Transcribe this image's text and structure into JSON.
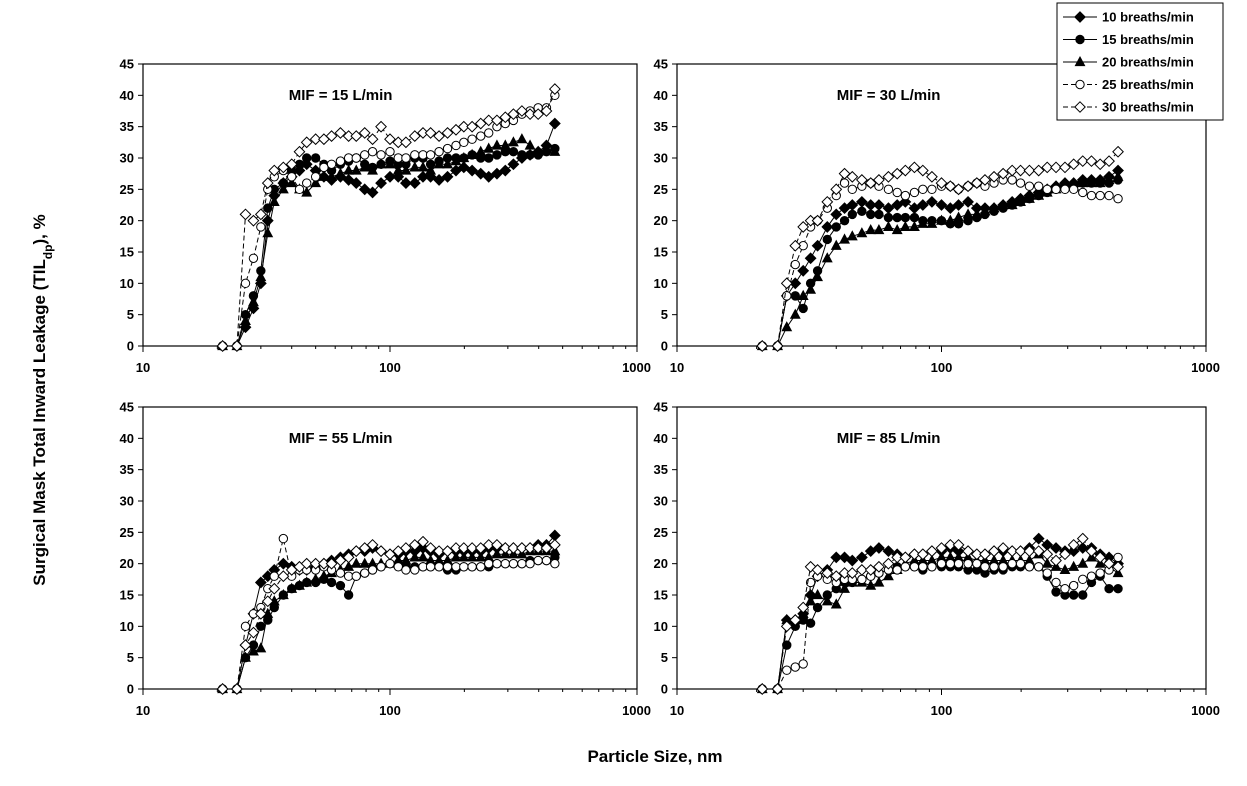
{
  "chart_data": {
    "type": "line",
    "x_scale": "log",
    "xlim": [
      10,
      1000
    ],
    "ylim": [
      0,
      45
    ],
    "x_ticks": [
      "10",
      "100",
      "1000"
    ],
    "y_ticks": [
      "0",
      "5",
      "10",
      "15",
      "20",
      "25",
      "30",
      "35",
      "40",
      "45"
    ],
    "ylabel_main": "Surgical Mask Total Inward Leakage (TIL",
    "ylabel_sub": "dp",
    "ylabel_end": "), %",
    "xlabel": "Particle Size, nm",
    "grid": false,
    "legend_placement": "top-right",
    "legend": [
      {
        "name": "10 breaths/min",
        "marker": "diamond-filled",
        "dash": "solid"
      },
      {
        "name": "15 breaths/min",
        "marker": "circle-filled",
        "dash": "solid"
      },
      {
        "name": "20 breaths/min",
        "marker": "triangle-filled",
        "dash": "solid"
      },
      {
        "name": "25 breaths/min",
        "marker": "circle-open",
        "dash": "dashed"
      },
      {
        "name": "30 breaths/min",
        "marker": "diamond-open",
        "dash": "dashed"
      }
    ],
    "x": [
      21,
      24,
      26,
      28,
      30,
      32,
      34,
      37,
      40,
      43,
      46,
      50,
      54,
      58,
      63,
      68,
      73,
      79,
      85,
      92,
      100,
      108,
      116,
      126,
      136,
      146,
      158,
      171,
      185,
      199,
      215,
      233,
      251,
      271,
      293,
      316,
      342,
      369,
      398,
      430,
      465
    ],
    "panels": [
      {
        "title": "MIF = 15 L/min",
        "series": [
          {
            "name": "10 breaths/min",
            "values": [
              0,
              0,
              3,
              6,
              10,
              20,
              24,
              26,
              27,
              28,
              29,
              28,
              27,
              26.5,
              27,
              26.5,
              26,
              25,
              24.5,
              26,
              27,
              27,
              26,
              26,
              27,
              27,
              26.5,
              27,
              28,
              28.5,
              28,
              27.5,
              27,
              27.5,
              28,
              29,
              30,
              30.5,
              31,
              32,
              35.5
            ]
          },
          {
            "name": "15 breaths/min",
            "values": [
              0,
              0,
              5,
              8,
              12,
              22,
              25,
              26,
              28,
              29,
              30,
              30,
              29,
              28,
              29,
              29.5,
              30,
              29,
              28.5,
              29,
              29.5,
              29,
              29,
              30,
              30,
              29,
              29.5,
              30,
              30,
              30,
              30.5,
              30,
              30,
              30.5,
              31,
              31,
              30.5,
              30.5,
              30.5,
              31,
              31.5
            ]
          },
          {
            "name": "20 breaths/min",
            "values": [
              0,
              0,
              4,
              7,
              11,
              18,
              23,
              25,
              26,
              25,
              24.5,
              26,
              27,
              27,
              27.5,
              28,
              28,
              28.5,
              28,
              29,
              29,
              28,
              28,
              28.5,
              28.5,
              28,
              29,
              29,
              29.5,
              30,
              30.5,
              31,
              31.5,
              32,
              32,
              32.5,
              33,
              32,
              31,
              31.5,
              31
            ]
          },
          {
            "name": "25 breaths/min",
            "values": [
              0,
              0,
              10,
              14,
              19,
              25,
              27,
              28,
              27,
              25,
              26,
              27,
              28.5,
              29,
              29.5,
              30,
              30,
              30.5,
              31,
              30.5,
              31,
              30,
              30,
              30.5,
              30.5,
              30.5,
              31,
              31.5,
              32,
              32.5,
              33,
              33.5,
              34,
              35,
              35.5,
              36,
              37,
              37.5,
              38,
              38,
              40
            ]
          },
          {
            "name": "30 breaths/min",
            "values": [
              0,
              0,
              21,
              20,
              21,
              26,
              28,
              28.5,
              29,
              31,
              32.5,
              33,
              33,
              33.5,
              34,
              33.5,
              33.5,
              34,
              33,
              35,
              33,
              32.5,
              32.5,
              33.5,
              34,
              34,
              33.5,
              34,
              34.5,
              35,
              35,
              35.5,
              36,
              36,
              36.5,
              37,
              37.5,
              37,
              37,
              37.5,
              41
            ]
          }
        ]
      },
      {
        "title": "MIF = 30 L/min",
        "series": [
          {
            "name": "10 breaths/min",
            "values": [
              0,
              0,
              8,
              10,
              12,
              14,
              16,
              19,
              21,
              22,
              22.5,
              23,
              22.5,
              22.5,
              22,
              22.5,
              23,
              22,
              22.5,
              23,
              22.5,
              22,
              22.5,
              23,
              22,
              22,
              22,
              22.5,
              23,
              23.5,
              24,
              24.5,
              25,
              25.5,
              26,
              26,
              26.5,
              26.5,
              26.5,
              27,
              28
            ]
          },
          {
            "name": "15 breaths/min",
            "values": [
              0,
              0,
              8,
              8,
              6,
              10,
              12,
              17,
              19,
              20,
              21,
              21.5,
              21,
              21,
              20.5,
              20.5,
              20.5,
              20.5,
              20,
              20,
              20,
              19.5,
              19.5,
              20,
              20.5,
              21,
              21.5,
              22,
              22.5,
              23,
              23.5,
              24,
              24.5,
              25,
              25.5,
              25.5,
              26,
              26,
              26,
              26,
              26.5
            ]
          },
          {
            "name": "20 breaths/min",
            "values": [
              0,
              0,
              3,
              5,
              8,
              9,
              11,
              14,
              16,
              17,
              17.5,
              18,
              18.5,
              18.5,
              19,
              18.5,
              19,
              19,
              19.5,
              19.5,
              20,
              20,
              20.5,
              21,
              21,
              21.5,
              22,
              22.5,
              22.5,
              23,
              23.5,
              24,
              24.5,
              25,
              25.5,
              25.5,
              26,
              26,
              26,
              26.5,
              27
            ]
          },
          {
            "name": "25 breaths/min",
            "values": [
              0,
              0,
              8,
              13,
              16,
              19,
              20,
              22,
              24,
              26,
              25,
              25.5,
              26,
              25.5,
              25,
              24.5,
              24,
              24.5,
              25,
              25,
              25.5,
              25.5,
              25,
              25.5,
              26,
              25.5,
              26,
              26.5,
              26.5,
              26,
              25.5,
              25.5,
              25,
              25,
              25,
              25,
              24.5,
              24,
              24,
              24,
              23.5
            ]
          },
          {
            "name": "30 breaths/min",
            "values": [
              0,
              0,
              10,
              16,
              19,
              20,
              20,
              23,
              25,
              27.5,
              27,
              26.5,
              26,
              26.5,
              27,
              27.5,
              28,
              28.5,
              28,
              27,
              26,
              25.5,
              25,
              25.5,
              26,
              26.5,
              27,
              27.5,
              28,
              28,
              28,
              28,
              28.5,
              28.5,
              28.5,
              29,
              29.5,
              29.5,
              29,
              29.5,
              31
            ]
          }
        ]
      },
      {
        "title": "MIF = 55 L/min",
        "series": [
          {
            "name": "10 breaths/min",
            "values": [
              0,
              0,
              7,
              12,
              17,
              18,
              19,
              20,
              19.5,
              19,
              19,
              19.5,
              20,
              20.5,
              21,
              21.5,
              22,
              22,
              22.5,
              22,
              21.5,
              21.5,
              22,
              22,
              22.5,
              22,
              21.5,
              22,
              22,
              22,
              22,
              22,
              22.5,
              22.5,
              22.5,
              22.5,
              22.5,
              22.5,
              23,
              23,
              24.5
            ]
          },
          {
            "name": "15 breaths/min",
            "values": [
              0,
              0,
              5,
              7,
              10,
              11,
              13,
              15,
              16,
              16.5,
              17,
              17,
              17.5,
              17,
              16.5,
              15,
              18,
              18.5,
              19,
              19.5,
              20,
              20,
              19.5,
              19.5,
              19.5,
              19.5,
              19.5,
              19,
              19,
              19.5,
              19.5,
              19.5,
              19.5,
              20,
              20,
              20,
              20,
              20.5,
              20.5,
              20.5,
              21
            ]
          },
          {
            "name": "20 breaths/min",
            "values": [
              0,
              0,
              5,
              6,
              6.5,
              12,
              14,
              15,
              16,
              16.5,
              17,
              17.5,
              18,
              18.5,
              19,
              19.5,
              20,
              20,
              20,
              20,
              20,
              20.5,
              20.5,
              21,
              21,
              20.5,
              20.5,
              20.5,
              21,
              21,
              21,
              21,
              21,
              21.5,
              21.5,
              21.5,
              21.5,
              22,
              22,
              22,
              22
            ]
          },
          {
            "name": "25 breaths/min",
            "values": [
              0,
              0,
              10,
              12,
              13,
              16,
              18,
              24,
              18,
              19,
              19,
              19,
              19.5,
              19,
              18.5,
              18,
              18,
              18.5,
              19,
              19.5,
              20,
              19.5,
              19,
              19,
              19.5,
              19.5,
              19.5,
              19.5,
              19.5,
              19.5,
              19.5,
              19.5,
              20,
              20,
              20,
              20,
              20,
              20,
              20.5,
              20.5,
              20
            ]
          },
          {
            "name": "30 breaths/min",
            "values": [
              0,
              0,
              7,
              9,
              12,
              14,
              16,
              18,
              19,
              19.5,
              20,
              20,
              20,
              20,
              20.5,
              21,
              22,
              22.5,
              23,
              22,
              21.5,
              22,
              22.5,
              23,
              23.5,
              22.5,
              22,
              22,
              22.5,
              22.5,
              22.5,
              22.5,
              23,
              23,
              22.5,
              22.5,
              22.5,
              22.5,
              22.5,
              22.5,
              23
            ]
          }
        ]
      },
      {
        "title": "MIF = 85 L/min",
        "series": [
          {
            "name": "10 breaths/min",
            "values": [
              0,
              0,
              11,
              11,
              12,
              15,
              18,
              19,
              21,
              21,
              20.5,
              21,
              22,
              22.5,
              22,
              21.5,
              21,
              21.5,
              21.5,
              22,
              22,
              22.5,
              22,
              22,
              21.5,
              21.5,
              22,
              22,
              22,
              22,
              22.5,
              24,
              23,
              22.5,
              22,
              22,
              22.5,
              22.5,
              21.5,
              21,
              20
            ]
          },
          {
            "name": "15 breaths/min",
            "values": [
              0,
              0,
              7,
              10,
              11,
              10.5,
              13,
              15,
              16,
              17,
              17,
              17.5,
              18,
              18.5,
              19,
              19.5,
              19.5,
              19.5,
              19,
              19.5,
              19.5,
              19.5,
              19.5,
              19,
              19,
              18.5,
              19,
              19,
              19.5,
              19.5,
              19.5,
              19.5,
              18,
              15.5,
              15,
              15,
              15,
              17,
              18,
              16,
              16
            ]
          },
          {
            "name": "20 breaths/min",
            "values": [
              0,
              0,
              11,
              11,
              12,
              14,
              15,
              14,
              13.5,
              16,
              17,
              17,
              16.5,
              17,
              18,
              19,
              20,
              20.5,
              20.5,
              20.5,
              21,
              21,
              21,
              21,
              20.5,
              20.5,
              20.5,
              20.5,
              20.5,
              20.5,
              20.5,
              21.5,
              20,
              19.5,
              19,
              19.5,
              20,
              21,
              20,
              19.5,
              18.5
            ]
          },
          {
            "name": "25 breaths/min",
            "values": [
              0,
              0,
              3,
              3.5,
              4,
              17,
              18,
              17.5,
              17,
              17.5,
              17.5,
              17.5,
              18,
              18.5,
              19,
              19,
              19.5,
              19.5,
              19.5,
              19.5,
              20,
              20,
              20,
              20,
              20,
              19.5,
              19.5,
              19.5,
              20,
              20,
              19.5,
              19.5,
              18.5,
              17,
              16,
              16.5,
              17.5,
              18,
              18.5,
              19,
              21
            ]
          },
          {
            "name": "30 breaths/min",
            "values": [
              0,
              0,
              10,
              11,
              13,
              19.5,
              19,
              18.5,
              18,
              18.5,
              18.5,
              19,
              19,
              19.5,
              20,
              21,
              21,
              21.5,
              21.5,
              22,
              22.5,
              23,
              23,
              22,
              21.5,
              21.5,
              22,
              22.5,
              22,
              22,
              22,
              22,
              21.5,
              20.5,
              21.5,
              23,
              24,
              22,
              21,
              20,
              19.5
            ]
          }
        ]
      }
    ]
  }
}
